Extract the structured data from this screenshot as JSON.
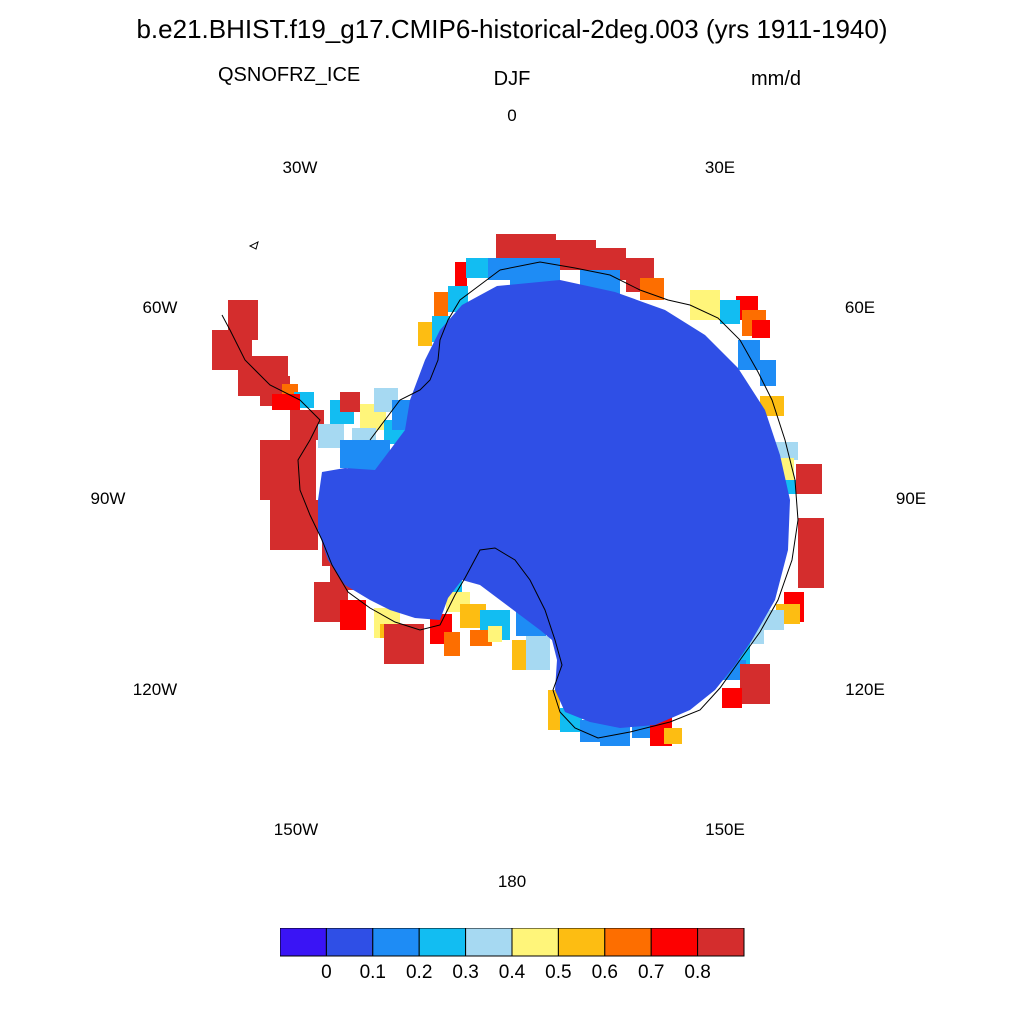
{
  "title": "b.e21.BHIST.f19_g17.CMIP6-historical-2deg.003 (yrs 1911-1940)",
  "variable": "QSNOFRZ_ICE",
  "season": "DJF",
  "units": "mm/d",
  "longitude_labels": [
    "0",
    "30E",
    "60E",
    "90E",
    "120E",
    "150E",
    "180",
    "150W",
    "120W",
    "90W",
    "60W",
    "30W"
  ],
  "colorbar": {
    "colors": [
      "#3a14f5",
      "#2f4fe6",
      "#1e8cf5",
      "#12bdf2",
      "#a6d9f2",
      "#fff57a",
      "#fdbd12",
      "#fd6e00",
      "#fd0000",
      "#d42d2d"
    ],
    "labels": [
      "0",
      "0.1",
      "0.2",
      "0.3",
      "0.4",
      "0.5",
      "0.6",
      "0.7",
      "0.8"
    ]
  },
  "map": {
    "projection": "south polar stereographic",
    "interior_color": "#2f4fe6",
    "coastline_color": "#000000"
  }
}
